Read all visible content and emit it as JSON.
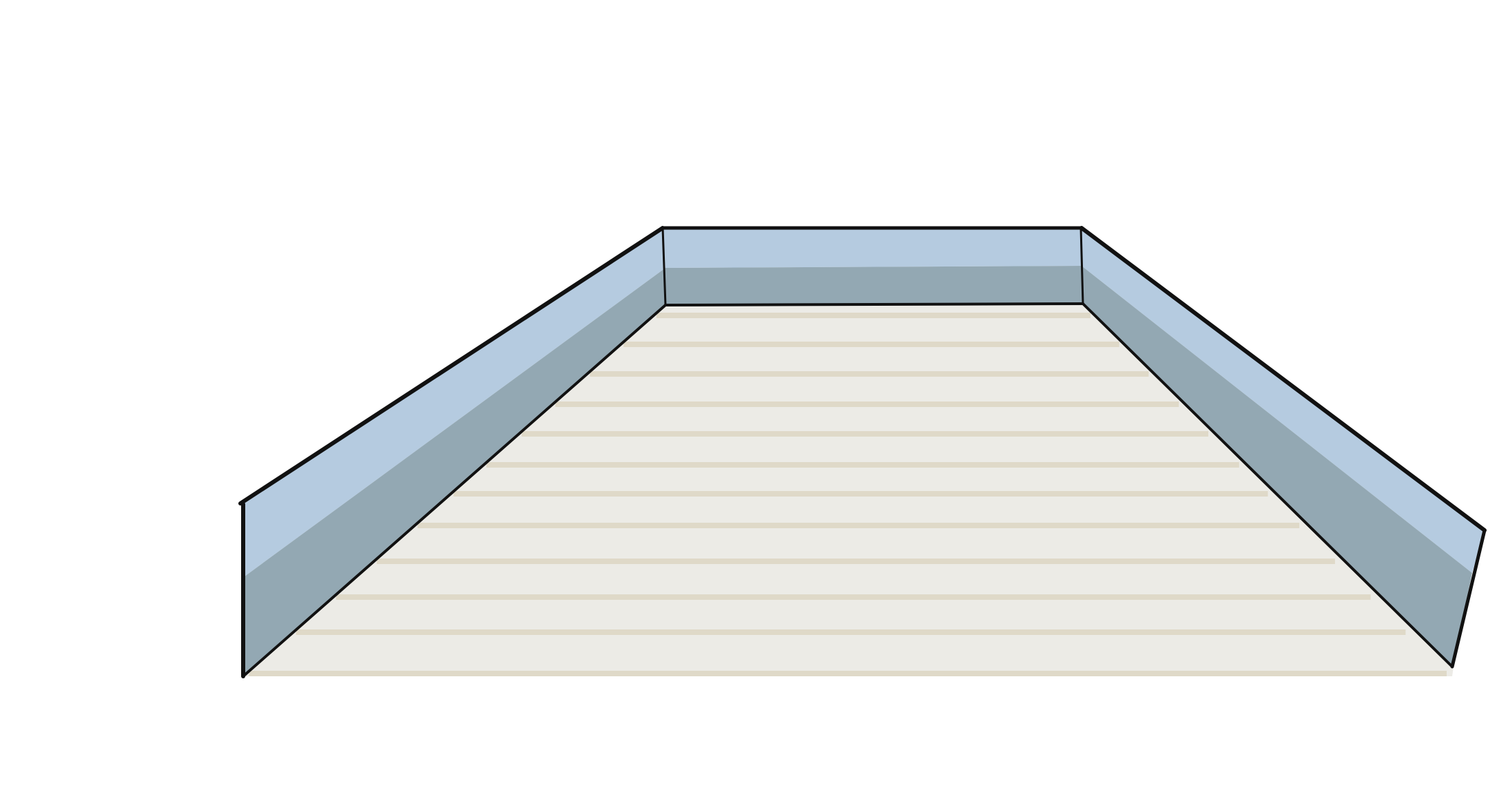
{
  "scene": {
    "subject": "deck",
    "colors": {
      "background": "#ffffff",
      "floor": "#ecebe6",
      "floor_plank_line": "#dfd9c8",
      "wall_top_band": "#b5cbe0",
      "wall_lower": "#93a8b3",
      "outline": "#111111"
    }
  }
}
